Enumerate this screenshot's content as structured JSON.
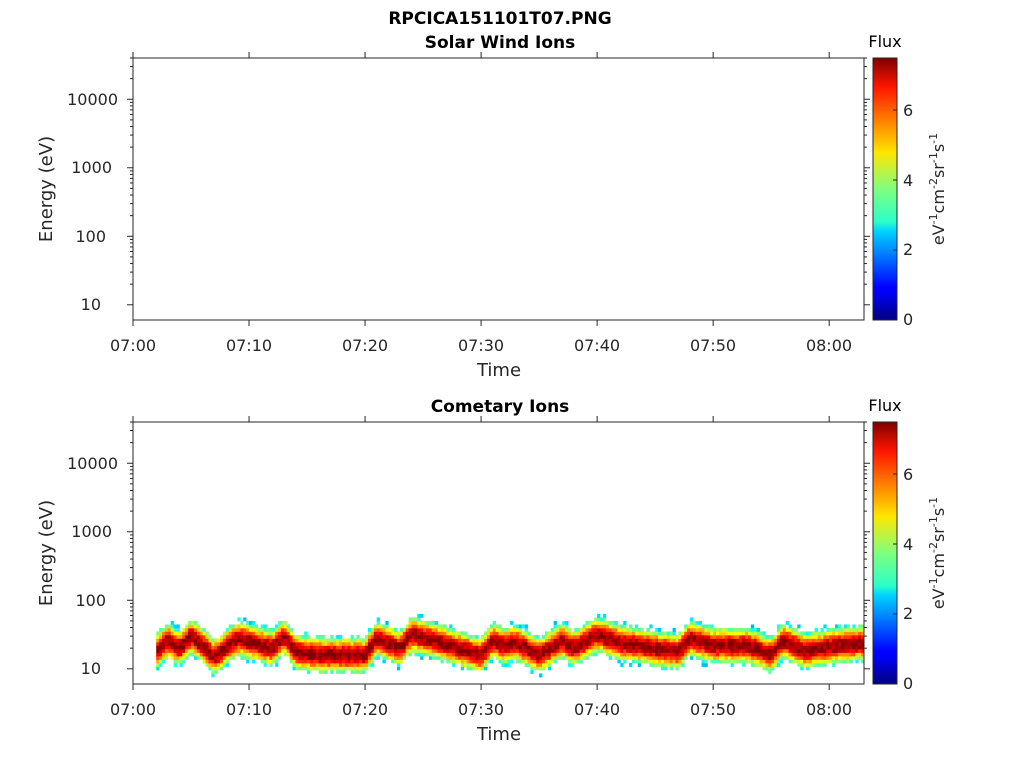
{
  "figure": {
    "file_title": "RPCICA151101T07.PNG"
  },
  "chart_data": [
    {
      "type": "heatmap",
      "title": "Solar Wind Ions",
      "xlabel": "Time",
      "ylabel": "Energy (eV)",
      "x_range": [
        "07:00",
        "08:03"
      ],
      "x_ticks": [
        "07:00",
        "07:10",
        "07:20",
        "07:30",
        "07:40",
        "07:50",
        "08:00"
      ],
      "y_scale": "log",
      "ylim": [
        6,
        40000
      ],
      "y_ticks": [
        "10",
        "100",
        "1000",
        "10000"
      ],
      "colorbar": {
        "title": "Flux",
        "unit_label": "eV-1cm-2sr-1s-1",
        "range": [
          0,
          7.3
        ],
        "ticks": [
          "0",
          "2",
          "4",
          "6"
        ],
        "colormap": "jet"
      },
      "data": "no data shown (empty panel)"
    },
    {
      "type": "heatmap",
      "title": "Cometary Ions",
      "xlabel": "Time",
      "ylabel": "Energy (eV)",
      "x_range": [
        "07:00",
        "08:03"
      ],
      "x_ticks": [
        "07:00",
        "07:10",
        "07:20",
        "07:30",
        "07:40",
        "07:50",
        "08:00"
      ],
      "y_scale": "log",
      "ylim": [
        6,
        40000
      ],
      "y_ticks": [
        "10",
        "100",
        "1000",
        "10000"
      ],
      "colorbar": {
        "title": "Flux",
        "unit_label": "eV-1cm-2sr-1s-1",
        "range": [
          0,
          7.3
        ],
        "ticks": [
          "0",
          "2",
          "4",
          "6"
        ],
        "colormap": "jet"
      },
      "data_time_range": [
        "07:02",
        "08:03"
      ],
      "energy_band_eV": [
        6,
        80
      ],
      "peak_energy_track": [
        {
          "t": "07:02",
          "e": 18
        },
        {
          "t": "07:03",
          "e": 26
        },
        {
          "t": "07:04",
          "e": 20
        },
        {
          "t": "07:05",
          "e": 30
        },
        {
          "t": "07:06",
          "e": 22
        },
        {
          "t": "07:07",
          "e": 15
        },
        {
          "t": "07:09",
          "e": 28
        },
        {
          "t": "07:10",
          "e": 25
        },
        {
          "t": "07:12",
          "e": 20
        },
        {
          "t": "07:13",
          "e": 30
        },
        {
          "t": "07:14",
          "e": 18
        },
        {
          "t": "07:16",
          "e": 16
        },
        {
          "t": "07:18",
          "e": 16
        },
        {
          "t": "07:20",
          "e": 16
        },
        {
          "t": "07:21",
          "e": 28
        },
        {
          "t": "07:23",
          "e": 20
        },
        {
          "t": "07:24",
          "e": 32
        },
        {
          "t": "07:26",
          "e": 26
        },
        {
          "t": "07:28",
          "e": 20
        },
        {
          "t": "07:30",
          "e": 16
        },
        {
          "t": "07:31",
          "e": 26
        },
        {
          "t": "07:32",
          "e": 22
        },
        {
          "t": "07:33",
          "e": 24
        },
        {
          "t": "07:35",
          "e": 16
        },
        {
          "t": "07:37",
          "e": 26
        },
        {
          "t": "07:38",
          "e": 20
        },
        {
          "t": "07:40",
          "e": 32
        },
        {
          "t": "07:42",
          "e": 24
        },
        {
          "t": "07:45",
          "e": 20
        },
        {
          "t": "07:47",
          "e": 18
        },
        {
          "t": "07:48",
          "e": 28
        },
        {
          "t": "07:50",
          "e": 22
        },
        {
          "t": "07:53",
          "e": 22
        },
        {
          "t": "07:55",
          "e": 16
        },
        {
          "t": "07:56",
          "e": 26
        },
        {
          "t": "07:58",
          "e": 18
        },
        {
          "t": "07:59",
          "e": 20
        },
        {
          "t": "08:01",
          "e": 22
        },
        {
          "t": "08:03",
          "e": 24
        }
      ],
      "peak_flux": 7.2
    }
  ]
}
